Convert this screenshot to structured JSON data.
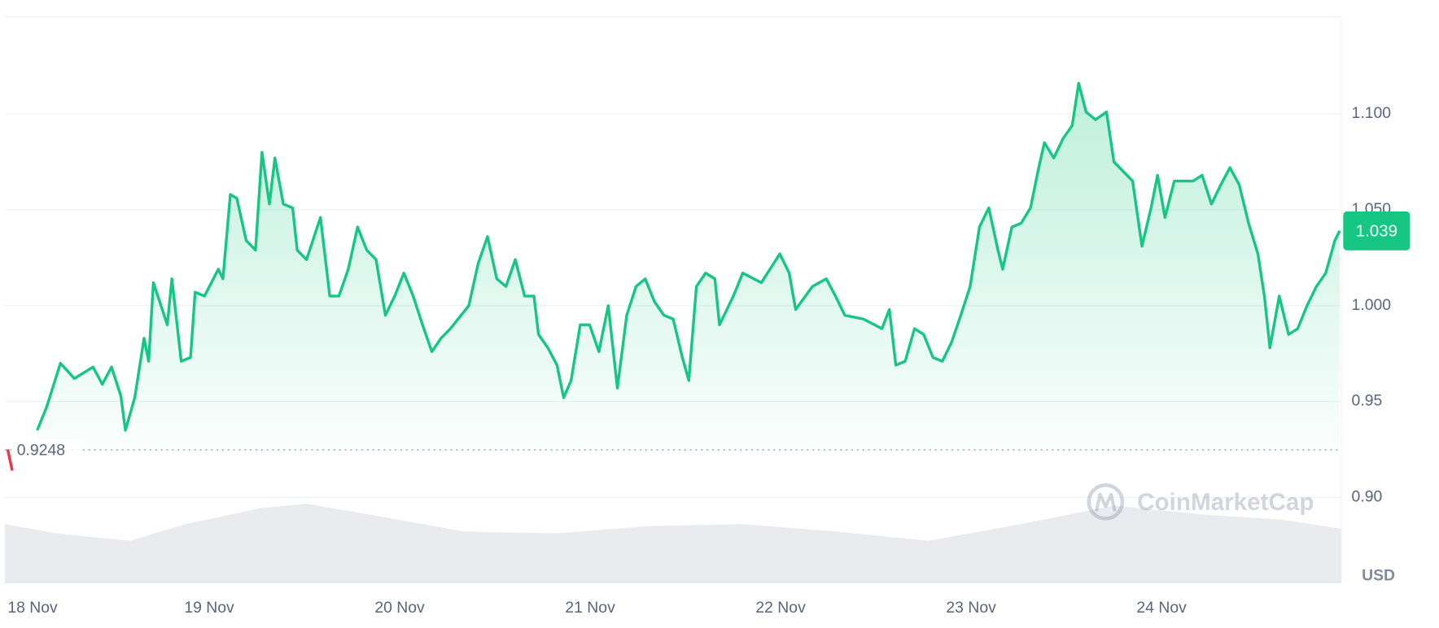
{
  "chart_data": {
    "type": "line",
    "xlim": [
      -0.073,
      6.944
    ],
    "ylim": [
      0.8556,
      1.1507
    ],
    "xticks": [
      {
        "value": 0,
        "label": "18 Nov"
      },
      {
        "value": 1,
        "label": "19 Nov"
      },
      {
        "value": 2,
        "label": "20 Nov"
      },
      {
        "value": 3,
        "label": "21 Nov"
      },
      {
        "value": 4,
        "label": "22 Nov"
      },
      {
        "value": 5,
        "label": "23 Nov"
      },
      {
        "value": 6,
        "label": "24 Nov"
      }
    ],
    "yticks": [
      {
        "value": 0.9,
        "label": "0.90"
      },
      {
        "value": 0.95,
        "label": "0.95"
      },
      {
        "value": 1.0,
        "label": "1.000"
      },
      {
        "value": 1.05,
        "label": "1.050"
      },
      {
        "value": 1.1,
        "label": "1.100"
      }
    ],
    "grid": true,
    "currency": "USD",
    "watermark": "CoinMarketCap",
    "reference": {
      "value": 0.9248,
      "label": "0.9248"
    },
    "current": {
      "value": 1.039,
      "color": "#16c784"
    },
    "series": [
      {
        "color": "#ea3943",
        "x": [
          -0.058,
          -0.034
        ],
        "values": [
          0.925,
          0.914
        ]
      },
      {
        "color": "#16c784",
        "x": [
          0.097,
          0.146,
          0.219,
          0.292,
          0.39,
          0.439,
          0.487,
          0.536,
          0.56,
          0.609,
          0.658,
          0.682,
          0.707,
          0.78,
          0.804,
          0.853,
          0.902,
          0.926,
          0.975,
          1.048,
          1.072,
          1.111,
          1.145,
          1.194,
          1.243,
          1.277,
          1.316,
          1.345,
          1.389,
          1.438,
          1.462,
          1.511,
          1.584,
          1.633,
          1.681,
          1.73,
          1.779,
          1.827,
          1.876,
          1.925,
          1.974,
          2.022,
          2.071,
          2.12,
          2.169,
          2.217,
          2.266,
          2.363,
          2.412,
          2.461,
          2.51,
          2.558,
          2.607,
          2.656,
          2.705,
          2.729,
          2.778,
          2.826,
          2.861,
          2.9,
          2.948,
          2.997,
          3.046,
          3.095,
          3.143,
          3.192,
          3.241,
          3.289,
          3.338,
          3.387,
          3.436,
          3.484,
          3.518,
          3.558,
          3.606,
          3.655,
          3.679,
          3.752,
          3.801,
          3.899,
          3.996,
          4.045,
          4.079,
          4.167,
          4.24,
          4.288,
          4.337,
          4.435,
          4.532,
          4.571,
          4.605,
          4.654,
          4.703,
          4.751,
          4.8,
          4.849,
          4.898,
          4.946,
          4.995,
          5.044,
          5.093,
          5.141,
          5.166,
          5.214,
          5.263,
          5.312,
          5.351,
          5.385,
          5.434,
          5.482,
          5.531,
          5.565,
          5.604,
          5.653,
          5.711,
          5.75,
          5.799,
          5.848,
          5.897,
          5.945,
          5.979,
          6.018,
          6.067,
          6.165,
          6.213,
          6.262,
          6.311,
          6.359,
          6.408,
          6.457,
          6.506,
          6.54,
          6.569,
          6.618,
          6.667,
          6.715,
          6.764,
          6.813,
          6.862,
          6.91,
          6.935
        ],
        "values": [
          0.935,
          0.947,
          0.97,
          0.962,
          0.968,
          0.959,
          0.968,
          0.953,
          0.935,
          0.952,
          0.983,
          0.971,
          1.012,
          0.99,
          1.014,
          0.971,
          0.973,
          1.007,
          1.005,
          1.019,
          1.014,
          1.058,
          1.056,
          1.034,
          1.029,
          1.08,
          1.053,
          1.077,
          1.053,
          1.051,
          1.029,
          1.024,
          1.046,
          1.005,
          1.005,
          1.019,
          1.041,
          1.029,
          1.024,
          0.995,
          1.005,
          1.017,
          1.005,
          0.99,
          0.976,
          0.983,
          0.988,
          1.0,
          1.022,
          1.036,
          1.014,
          1.01,
          1.024,
          1.005,
          1.005,
          0.985,
          0.978,
          0.969,
          0.952,
          0.961,
          0.99,
          0.99,
          0.976,
          1.0,
          0.957,
          0.995,
          1.01,
          1.014,
          1.002,
          0.995,
          0.993,
          0.973,
          0.961,
          1.01,
          1.017,
          1.014,
          0.99,
          1.005,
          1.017,
          1.012,
          1.027,
          1.017,
          0.998,
          1.01,
          1.014,
          1.005,
          0.995,
          0.993,
          0.988,
          0.998,
          0.969,
          0.971,
          0.988,
          0.985,
          0.973,
          0.971,
          0.981,
          0.995,
          1.01,
          1.041,
          1.051,
          1.029,
          1.019,
          1.041,
          1.043,
          1.051,
          1.07,
          1.085,
          1.077,
          1.087,
          1.094,
          1.116,
          1.101,
          1.097,
          1.101,
          1.075,
          1.07,
          1.065,
          1.031,
          1.051,
          1.068,
          1.046,
          1.065,
          1.065,
          1.068,
          1.053,
          1.063,
          1.072,
          1.063,
          1.043,
          1.027,
          1.005,
          0.978,
          1.005,
          0.985,
          0.988,
          1.0,
          1.01,
          1.017,
          1.034,
          1.039
        ]
      }
    ],
    "volume": {
      "color": "#e9ebef",
      "lim": [
        0,
        100
      ],
      "x": [
        -0.073,
        0.195,
        0.585,
        0.877,
        1.267,
        1.511,
        1.852,
        2.339,
        2.826,
        3.314,
        3.801,
        4.288,
        4.776,
        5.263,
        5.75,
        6.237,
        6.627,
        6.944
      ],
      "values": [
        63,
        53,
        45,
        63,
        80,
        85,
        73,
        55,
        53,
        61,
        63,
        55,
        45,
        63,
        83,
        73,
        68,
        58
      ]
    }
  }
}
